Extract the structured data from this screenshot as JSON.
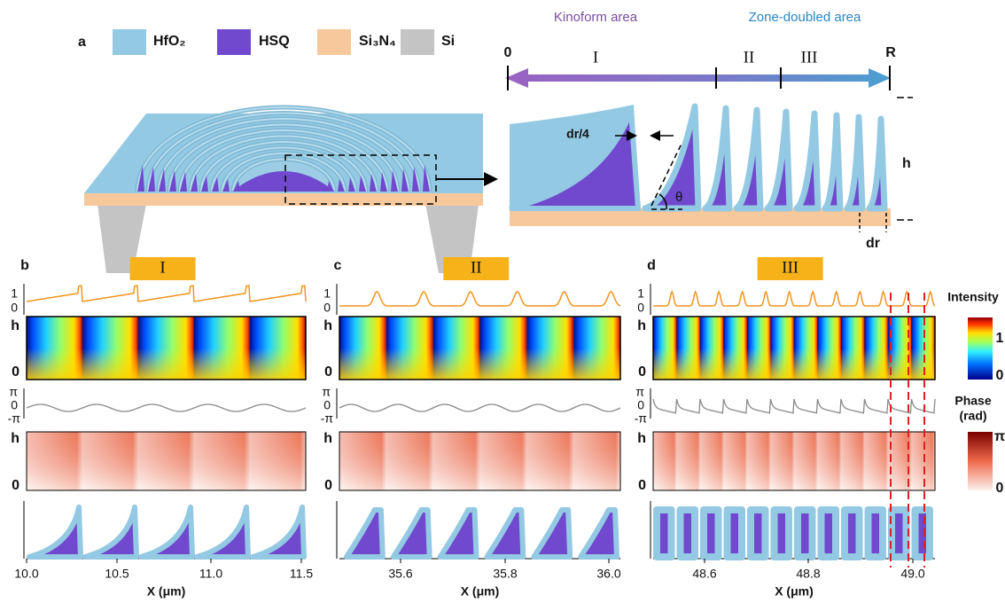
{
  "panel_a": {
    "label": "a",
    "legend": [
      "HfO₂",
      "HSQ",
      "Si₃N₄",
      "Si"
    ],
    "areas": [
      "Kinoform area",
      "Zone-doubled area"
    ],
    "radius_start": "0",
    "radius_end": "R",
    "zones": [
      "I",
      "II",
      "III"
    ],
    "dims": [
      "dr/4",
      "θ",
      "h",
      "dr"
    ]
  },
  "panels": [
    {
      "label": "b",
      "zone": "I",
      "x_ticks": [
        "10.0",
        "10.5",
        "11.0",
        "11.5"
      ]
    },
    {
      "label": "c",
      "zone": "II",
      "x_ticks": [
        "35.6",
        "35.8",
        "36.0"
      ]
    },
    {
      "label": "d",
      "zone": "III",
      "x_ticks": [
        "48.6",
        "48.8",
        "49.0"
      ]
    }
  ],
  "intensity_ticks": [
    "1",
    "0"
  ],
  "height_ticks": [
    "h",
    "0"
  ],
  "phase_ticks": [
    "π",
    "0",
    "-π"
  ],
  "x_label": "X (μm)",
  "colorbars": {
    "intensity": {
      "title": "Intensity",
      "ticks": [
        "1",
        "0"
      ]
    },
    "phase": {
      "title": [
        "Phase",
        "(rad)"
      ],
      "ticks": [
        "π",
        "0"
      ]
    }
  }
}
